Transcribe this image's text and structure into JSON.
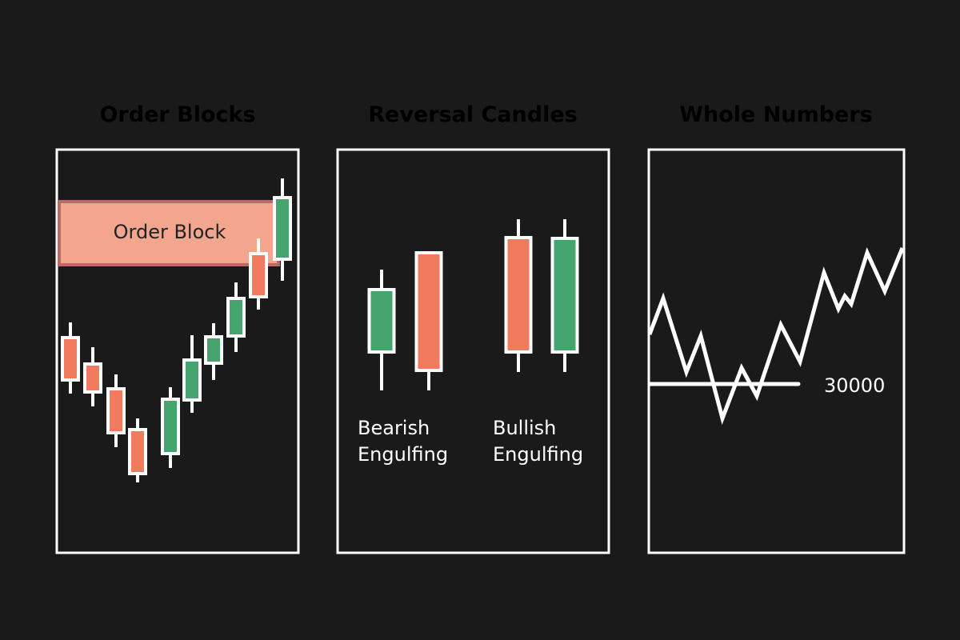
{
  "colors": {
    "background": "#1a1a1a",
    "title": "#e3ad3c",
    "bearish": "#f07b5f",
    "bullish": "#46a46f",
    "order_block_fill": "#f2a68e",
    "order_block_border": "#b86a67",
    "outline": "#ffffff"
  },
  "panels": [
    {
      "title": "Order Blocks",
      "zone_label": "Order Block"
    },
    {
      "title": "Reversal Candles",
      "labels": [
        {
          "line1": "Bearish",
          "line2": "Engulfing"
        },
        {
          "line1": "Bullish",
          "line2": "Engulfing"
        }
      ]
    },
    {
      "title": "Whole Numbers",
      "level_label": "30000"
    }
  ]
}
